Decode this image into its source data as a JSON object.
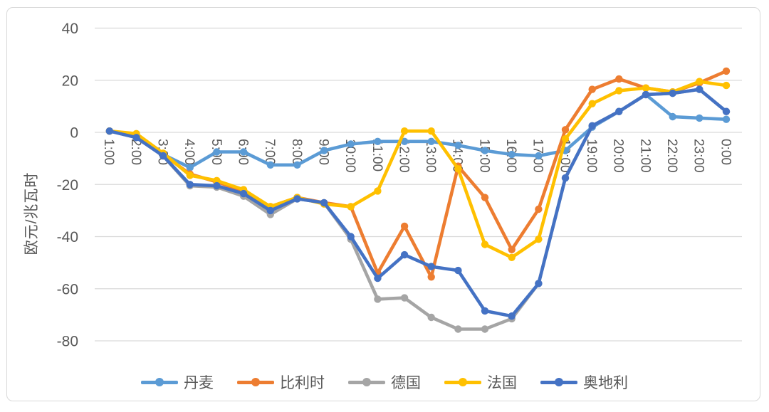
{
  "chart_data": {
    "type": "line",
    "title": "",
    "ylabel": "欧元/兆瓦时",
    "xlabel": "",
    "ylim": [
      -80,
      40
    ],
    "y_ticks": [
      40,
      20,
      0,
      -20,
      -40,
      -60,
      -80
    ],
    "grid": "horizontal",
    "legend_position": "bottom",
    "x_labels": [
      "1:00",
      "2:00",
      "3:00",
      "4:00",
      "5:00",
      "6:00",
      "7:00",
      "8:00",
      "9:00",
      "10:00",
      "11:00",
      "12:00",
      "13:00",
      "14:00",
      "15:00",
      "16:00",
      "17:00",
      "18:00",
      "19:00",
      "20:00",
      "21:00",
      "22:00",
      "23:00",
      "0:00"
    ],
    "series": [
      {
        "name": "丹麦",
        "color": "#5B9BD5",
        "values": [
          0.5,
          -1.5,
          -8.5,
          -13.5,
          -7.5,
          -7.5,
          -12.5,
          -12.5,
          -7,
          -4.5,
          -3.5,
          -3.5,
          -3.5,
          -5,
          -7,
          -8.5,
          -9,
          -7,
          2,
          8,
          14.5,
          6,
          5.5,
          5
        ]
      },
      {
        "name": "比利时",
        "color": "#ED7D31",
        "values": [
          0.5,
          -1.5,
          -8.5,
          -16,
          -19,
          -22.5,
          -28.5,
          -25,
          -27,
          -28.5,
          -54,
          -36,
          -55.5,
          -13,
          -25,
          -45,
          -29.5,
          1,
          16.5,
          20.5,
          17,
          15.5,
          19,
          23.5
        ]
      },
      {
        "name": "德国",
        "color": "#A5A5A5",
        "values": [
          0.5,
          -2,
          -9,
          -20.5,
          -21,
          -24.5,
          -31.5,
          -25.5,
          -27,
          -41,
          -64,
          -63.5,
          -71,
          -75.5,
          -75.5,
          -71.5,
          -58,
          -17.5,
          2.5,
          8,
          14.5,
          15,
          16.5,
          8
        ]
      },
      {
        "name": "法国",
        "color": "#FFC000",
        "values": [
          0.5,
          -0.5,
          -8,
          -16.5,
          -18.5,
          -22,
          -28.5,
          -25,
          -27.5,
          -28.5,
          -22.5,
          0.5,
          0.5,
          -14,
          -43,
          -48,
          -41,
          -2.5,
          11,
          16,
          17,
          15.5,
          19.5,
          18
        ]
      },
      {
        "name": "奥地利",
        "color": "#4472C4",
        "values": [
          0.5,
          -2,
          -9,
          -20,
          -20.5,
          -23.5,
          -30,
          -25.5,
          -27,
          -40,
          -56,
          -47,
          -51.5,
          -53,
          -68.5,
          -70.5,
          -58,
          -17.5,
          2.5,
          8,
          14.5,
          15,
          16.5,
          8
        ]
      }
    ]
  },
  "colors": {
    "grid": "#D9D9D9",
    "frame_border": "#D9D9D9",
    "axis_text": "#595959",
    "background": "#FFFFFF"
  }
}
